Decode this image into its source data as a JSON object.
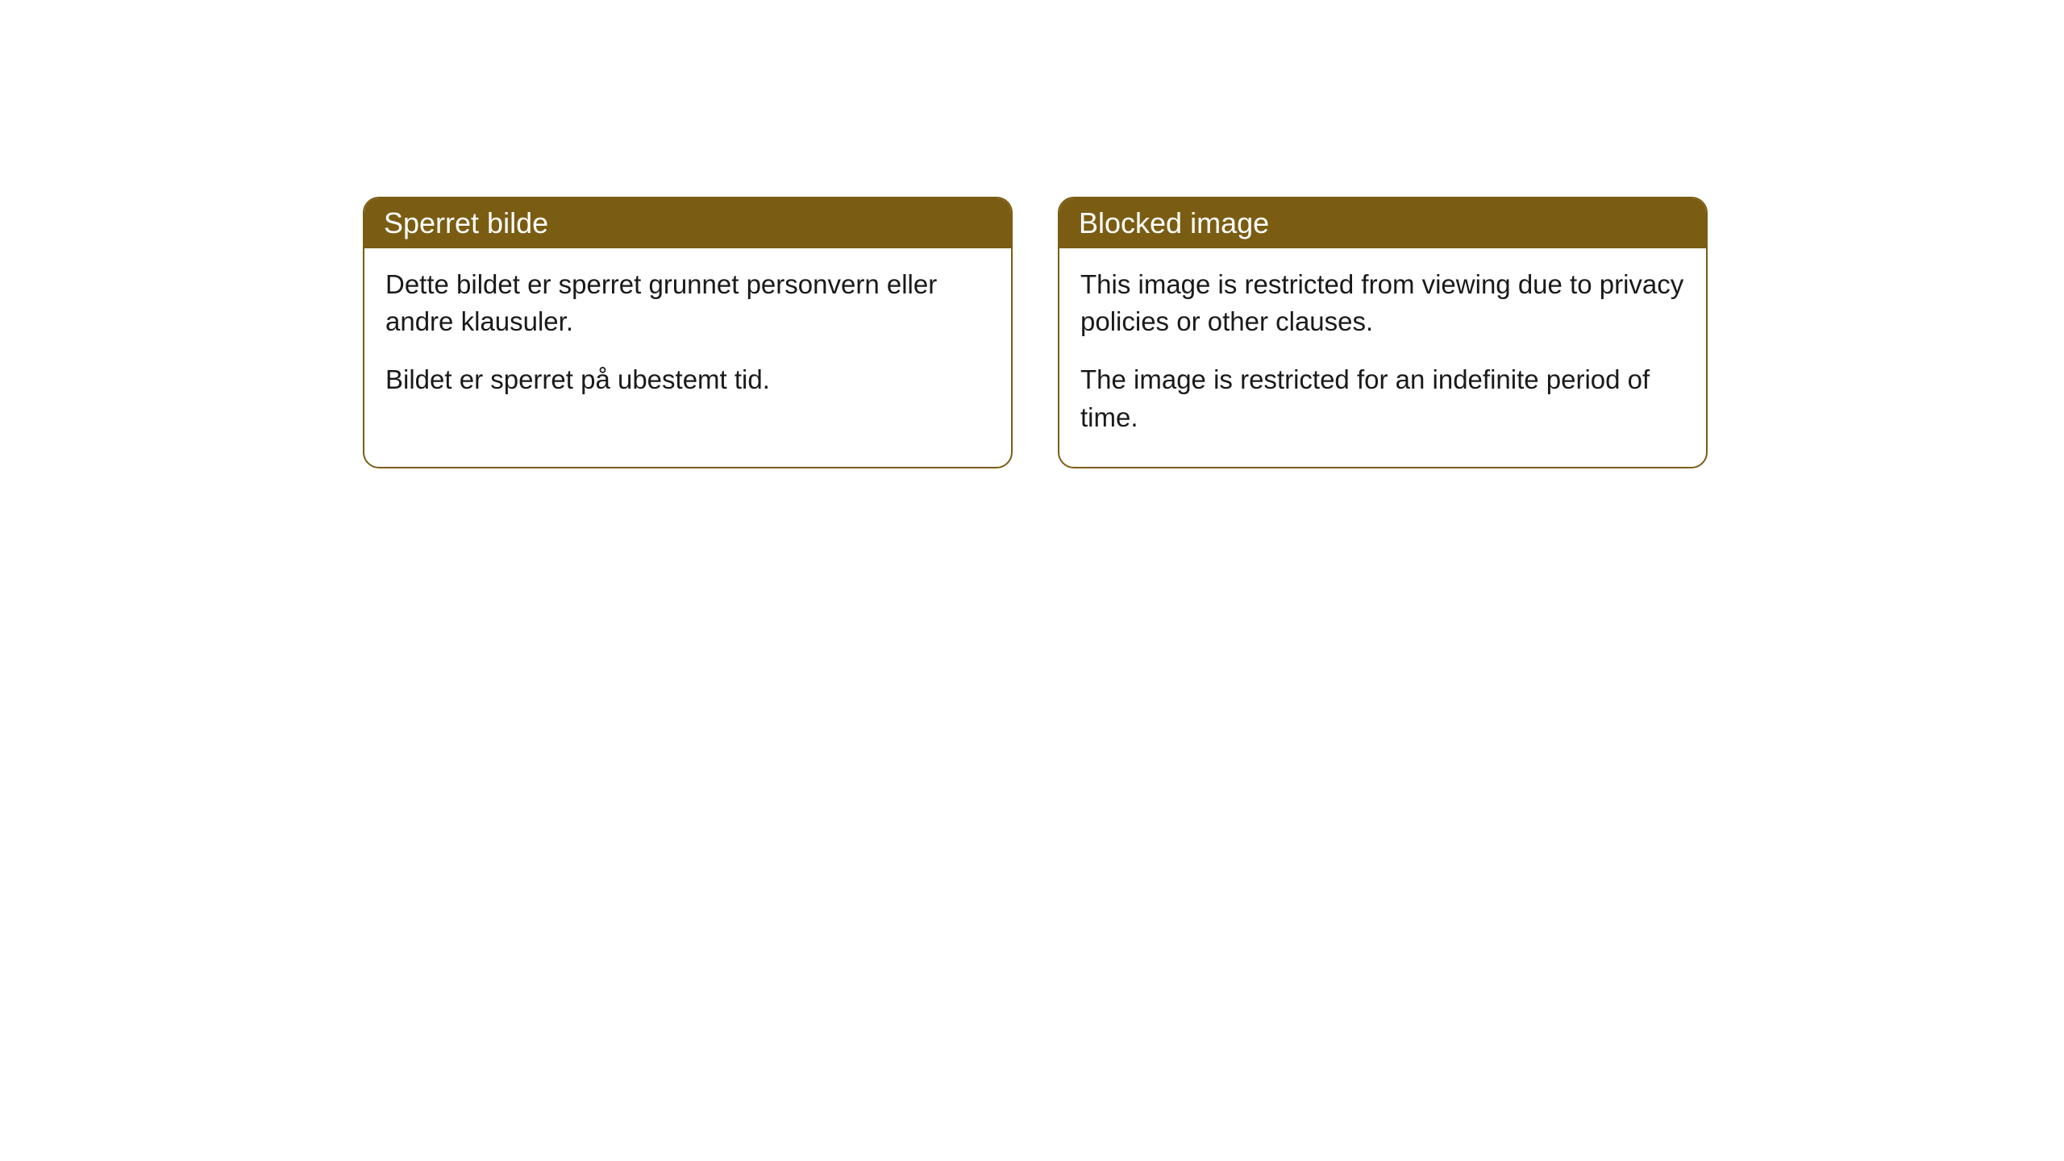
{
  "cards": [
    {
      "title": "Sperret bilde",
      "paragraph1": "Dette bildet er sperret grunnet personvern eller andre klausuler.",
      "paragraph2": "Bildet er sperret på ubestemt tid."
    },
    {
      "title": "Blocked image",
      "paragraph1": "This image is restricted from viewing due to privacy policies or other clauses.",
      "paragraph2": "The image is restricted for an indefinite period of time."
    }
  ],
  "styling": {
    "header_bg_color": "#7a5d13",
    "header_text_color": "#ffffff",
    "border_color": "#7a5d13",
    "body_text_color": "#1a1a1a",
    "page_bg_color": "#ffffff",
    "border_radius": 20,
    "header_fontsize": 36,
    "body_fontsize": 33
  }
}
